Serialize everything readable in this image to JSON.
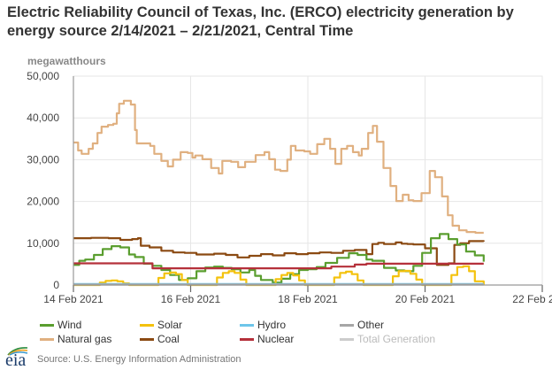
{
  "header": {
    "title": "Electric Reliability Council of Texas, Inc. (ERCO) electricity generation by energy source 2/14/2021 – 2/21/2021, Central Time",
    "unit_label": "megawatthours"
  },
  "footer": {
    "logo_text": "eia",
    "source": "Source: U.S. Energy Information Administration"
  },
  "chart_data": {
    "type": "line",
    "title": "Electric Reliability Council of Texas, Inc. (ERCO) electricity generation by energy source 2/14/2021 – 2/21/2021, Central Time",
    "xlabel": "",
    "ylabel": "megawatthours",
    "x_unit": "days since 14 Feb 2021 00:00 CT",
    "xlim": [
      0,
      8
    ],
    "ylim": [
      0,
      50000
    ],
    "grid": true,
    "legend_position": "bottom",
    "x_ticks": [
      {
        "value": 0,
        "label": "14 Feb 2021"
      },
      {
        "value": 2,
        "label": "16 Feb 2021"
      },
      {
        "value": 4,
        "label": "18 Feb 2021"
      },
      {
        "value": 6,
        "label": "20 Feb 2021"
      },
      {
        "value": 8,
        "label": "22 Feb 2021"
      }
    ],
    "y_ticks": [
      {
        "value": 0,
        "label": "0"
      },
      {
        "value": 10000,
        "label": "10,000"
      },
      {
        "value": 20000,
        "label": "20,000"
      },
      {
        "value": 30000,
        "label": "30,000"
      },
      {
        "value": 40000,
        "label": "40,000"
      },
      {
        "value": 50000,
        "label": "50,000"
      }
    ],
    "series": [
      {
        "name": "Natural gas",
        "key": "gas",
        "color": "#e0b080",
        "x": [
          0,
          0.08,
          0.14,
          0.26,
          0.33,
          0.41,
          0.48,
          0.59,
          0.68,
          0.74,
          0.78,
          0.86,
          0.98,
          1.05,
          1.08,
          1.2,
          1.31,
          1.38,
          1.5,
          1.61,
          1.7,
          1.83,
          1.95,
          2.03,
          2.08,
          2.2,
          2.35,
          2.48,
          2.54,
          2.69,
          2.81,
          2.93,
          3.11,
          3.26,
          3.34,
          3.44,
          3.53,
          3.65,
          3.71,
          3.79,
          3.94,
          4.04,
          4.16,
          4.28,
          4.38,
          4.47,
          4.57,
          4.67,
          4.77,
          4.87,
          4.92,
          5.03,
          5.11,
          5.18,
          5.29,
          5.41,
          5.51,
          5.62,
          5.72,
          5.8,
          5.94,
          6.08,
          6.17,
          6.29,
          6.39,
          6.47,
          6.58,
          6.71,
          6.86,
          7.0
        ],
        "values": [
          34100,
          32200,
          31400,
          32600,
          33900,
          36400,
          37900,
          38300,
          38600,
          41100,
          43400,
          44100,
          43200,
          37100,
          33900,
          33900,
          33300,
          31400,
          29700,
          28400,
          30000,
          31800,
          31600,
          30500,
          31000,
          30100,
          28000,
          26700,
          29700,
          29500,
          28200,
          29500,
          31100,
          31800,
          30100,
          27600,
          27300,
          30000,
          33300,
          32200,
          32000,
          31400,
          33700,
          35000,
          32600,
          29000,
          32600,
          33300,
          31800,
          31000,
          32600,
          36400,
          38100,
          34300,
          28000,
          23700,
          20100,
          21600,
          20300,
          20100,
          22000,
          27300,
          25800,
          21200,
          16700,
          14200,
          13100,
          12700,
          12500,
          12500
        ]
      },
      {
        "name": "Coal",
        "key": "coal",
        "color": "#8b4a12",
        "x": [
          0,
          0.3,
          0.6,
          0.8,
          1.0,
          1.1,
          1.15,
          1.3,
          1.5,
          1.7,
          1.9,
          2.1,
          2.4,
          2.6,
          2.8,
          3.0,
          3.2,
          3.4,
          3.6,
          3.8,
          4.0,
          4.2,
          4.4,
          4.6,
          4.8,
          5.0,
          5.1,
          5.2,
          5.3,
          5.5,
          5.6,
          5.7,
          5.8,
          6.0,
          6.2,
          6.4,
          6.5,
          6.6,
          6.75,
          7.0
        ],
        "values": [
          11200,
          11300,
          11200,
          10800,
          11000,
          11200,
          9400,
          9000,
          8200,
          7800,
          7700,
          7300,
          7500,
          7200,
          6600,
          7000,
          7400,
          7100,
          7600,
          7400,
          7600,
          7800,
          7700,
          8200,
          8400,
          7400,
          9800,
          10100,
          9800,
          10200,
          9900,
          9800,
          9700,
          8800,
          4800,
          5200,
          9600,
          10000,
          10500,
          10400
        ]
      },
      {
        "name": "Wind",
        "key": "wind",
        "color": "#5a9e2f",
        "x": [
          0,
          0.1,
          0.2,
          0.35,
          0.5,
          0.65,
          0.8,
          0.95,
          1.05,
          1.2,
          1.35,
          1.5,
          1.65,
          1.8,
          1.95,
          2.1,
          2.25,
          2.4,
          2.55,
          2.7,
          2.85,
          3.0,
          3.1,
          3.2,
          3.4,
          3.55,
          3.7,
          3.85,
          4.0,
          4.15,
          4.3,
          4.5,
          4.7,
          4.85,
          5.0,
          5.1,
          5.3,
          5.5,
          5.65,
          5.8,
          5.95,
          6.1,
          6.25,
          6.4,
          6.55,
          6.7,
          6.85,
          7.0
        ],
        "values": [
          4800,
          5800,
          6100,
          7200,
          8600,
          9300,
          9000,
          7300,
          6700,
          5100,
          4600,
          3600,
          2400,
          1200,
          1600,
          3300,
          4200,
          4400,
          4100,
          3800,
          3000,
          3600,
          2200,
          1200,
          600,
          1500,
          2600,
          3600,
          3800,
          4300,
          5300,
          6500,
          7600,
          7200,
          6100,
          5800,
          4100,
          3500,
          3300,
          4600,
          7700,
          11200,
          12200,
          11000,
          9700,
          8000,
          7100,
          5600
        ]
      },
      {
        "name": "Nuclear",
        "key": "nuclear",
        "color": "#b5303a",
        "x": [
          0,
          1.2,
          1.35,
          4.0,
          4.4,
          4.8,
          5.0,
          7.0
        ],
        "values": [
          5200,
          5200,
          4000,
          4000,
          4400,
          4900,
          5100,
          5100
        ]
      },
      {
        "name": "Solar",
        "key": "solar",
        "color": "#f4c20d",
        "x": [
          0,
          0.3,
          0.45,
          0.55,
          0.65,
          0.75,
          0.85,
          0.95,
          1.3,
          1.45,
          1.55,
          1.65,
          1.75,
          1.85,
          1.95,
          2.3,
          2.45,
          2.55,
          2.65,
          2.75,
          2.85,
          2.95,
          3.3,
          3.45,
          3.55,
          3.65,
          3.75,
          3.85,
          3.95,
          4.3,
          4.45,
          4.55,
          4.65,
          4.75,
          4.85,
          4.95,
          5.3,
          5.45,
          5.55,
          5.65,
          5.75,
          5.85,
          5.95,
          6.3,
          6.45,
          6.55,
          6.65,
          6.75,
          6.85,
          7.0
        ],
        "values": [
          0,
          0,
          600,
          1000,
          1100,
          900,
          400,
          0,
          0,
          1700,
          2800,
          3000,
          2600,
          1200,
          0,
          0,
          1800,
          2900,
          3300,
          2900,
          1300,
          0,
          0,
          1400,
          2400,
          2900,
          2300,
          1100,
          0,
          0,
          1800,
          2900,
          3200,
          2600,
          1100,
          0,
          0,
          2100,
          3300,
          3400,
          2700,
          1300,
          0,
          0,
          2400,
          4300,
          4500,
          3300,
          900,
          0
        ]
      },
      {
        "name": "Hydro",
        "key": "hydro",
        "color": "#6ec6ea",
        "x": [
          0,
          7.0
        ],
        "values": [
          250,
          250
        ]
      },
      {
        "name": "Other",
        "key": "other",
        "color": "#a6a6a6",
        "x": [
          0,
          7.0
        ],
        "values": [
          100,
          100
        ]
      },
      {
        "name": "Total Generation",
        "key": "total",
        "color": "#cccccc",
        "x": [],
        "values": []
      }
    ]
  }
}
